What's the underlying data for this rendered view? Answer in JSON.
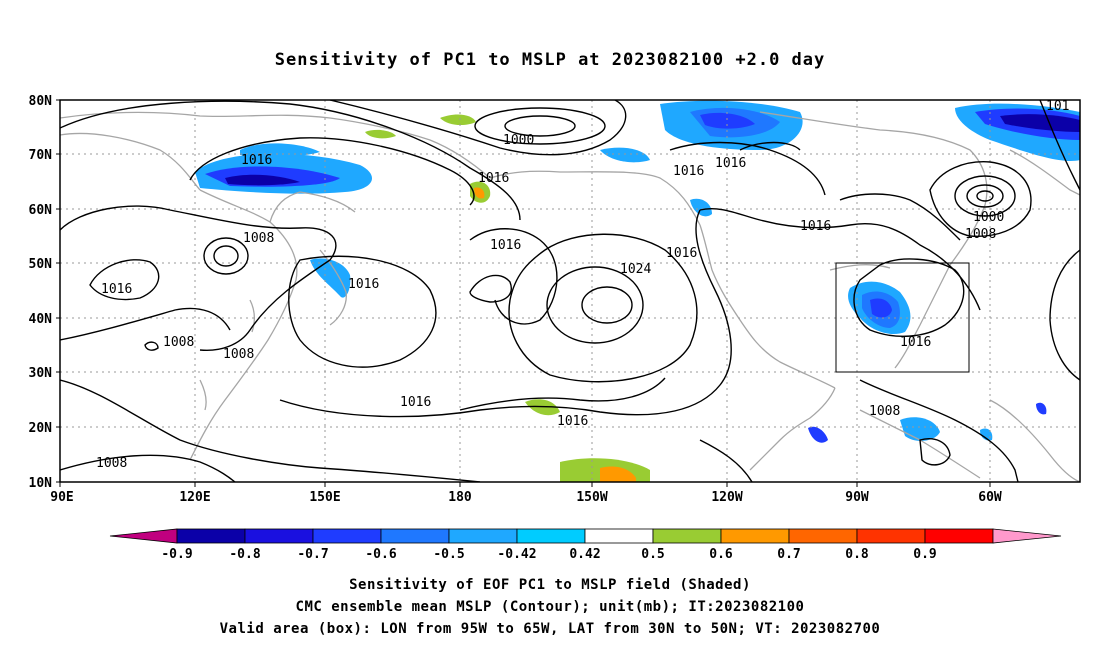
{
  "title": "Sensitivity of PC1 to MSLP at 2023082100 +2.0 day",
  "axes": {
    "lon_ticks": [
      "90E",
      "120E",
      "150E",
      "180",
      "150W",
      "120W",
      "90W",
      "60W"
    ],
    "lat_ticks": [
      "80N",
      "70N",
      "60N",
      "50N",
      "40N",
      "30N",
      "20N",
      "10N"
    ]
  },
  "colorbar": {
    "labels": [
      "-0.9",
      "-0.8",
      "-0.7",
      "-0.6",
      "-0.5",
      "-0.42",
      "0.42",
      "0.5",
      "0.6",
      "0.7",
      "0.8",
      "0.9"
    ],
    "colors": [
      "#c0007f",
      "#0b00a8",
      "#1a10e0",
      "#1f3cff",
      "#1f78ff",
      "#1fa8ff",
      "#00ccff",
      "#ffffff",
      "#99cc33",
      "#ff9900",
      "#ff6600",
      "#ff3300",
      "#ff0000",
      "#ff99cc"
    ]
  },
  "contour_labels": [
    "1000",
    "1016",
    "1016",
    "1016",
    "1008",
    "1016",
    "1016",
    "1016",
    "1024",
    "1016",
    "1016",
    "1008",
    "1008",
    "1016",
    "1016",
    "1016",
    "1016",
    "1000",
    "1008",
    "1008",
    "1008",
    "101"
  ],
  "valid_box": {
    "lon_from": "95W",
    "lon_to": "65W",
    "lat_from": "30N",
    "lat_to": "50N"
  },
  "captions": [
    "Sensitivity of EOF PC1 to MSLP field (Shaded)",
    "CMC ensemble mean MSLP (Contour); unit(mb); IT:2023082100",
    "Valid area (box): LON from 95W to 65W, LAT from 30N to 50N; VT: 2023082700"
  ],
  "map_colors": {
    "coast": "#a6a6a6",
    "contour": "#000000",
    "grid": "#999999"
  }
}
